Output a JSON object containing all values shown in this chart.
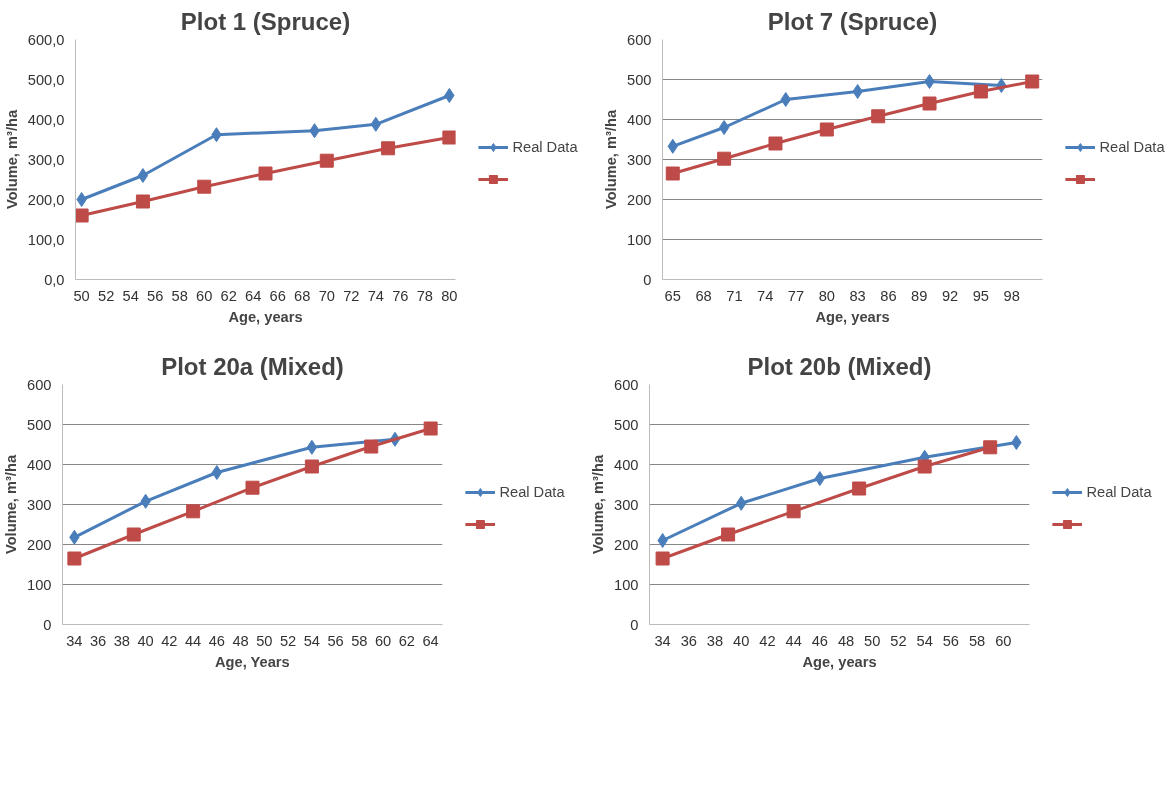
{
  "chart_data": [
    {
      "type": "line",
      "title": "Plot 1 (Spruce)",
      "xlabel": "Age, years",
      "ylabel": "Volume, m³/ha",
      "xlim": [
        49.5,
        80.5
      ],
      "xticks": [
        50,
        52,
        54,
        56,
        58,
        60,
        62,
        64,
        66,
        68,
        70,
        72,
        74,
        76,
        78,
        80
      ],
      "ylim": [
        0,
        600
      ],
      "yticks": [
        {
          "value": 0,
          "label": "0,0"
        },
        {
          "value": 100,
          "label": "100,0"
        },
        {
          "value": 200,
          "label": "200,0"
        },
        {
          "value": 300,
          "label": "300,0"
        },
        {
          "value": 400,
          "label": "400,0"
        },
        {
          "value": 500,
          "label": "500,0"
        },
        {
          "value": 600,
          "label": "600,0"
        }
      ],
      "grid": false,
      "legend": "right",
      "series": [
        {
          "name": "Real Data",
          "color": "#4a7ebb",
          "marker": "diamond",
          "x": [
            50,
            55,
            61,
            69,
            74,
            80
          ],
          "values": [
            200,
            260,
            362,
            372,
            388,
            460
          ]
        },
        {
          "color": "#be4b48",
          "marker": "square",
          "x": [
            50,
            55,
            60,
            65,
            70,
            75,
            80
          ],
          "values": [
            160,
            195,
            232,
            265,
            297,
            328,
            355
          ]
        }
      ]
    },
    {
      "type": "line",
      "title": "Plot 7 (Spruce)",
      "xlabel": "Age, years",
      "ylabel": "Volume, m³/ha",
      "xlim": [
        64,
        101
      ],
      "xticks": [
        65,
        68,
        71,
        74,
        77,
        80,
        83,
        86,
        89,
        92,
        95,
        98
      ],
      "ylim": [
        0,
        600
      ],
      "yticks": [
        0,
        100,
        200,
        300,
        400,
        500,
        600
      ],
      "grid": "y",
      "legend": "right",
      "series": [
        {
          "name": "Real Data",
          "color": "#4a7ebb",
          "marker": "diamond",
          "x": [
            65,
            70,
            76,
            83,
            90,
            97
          ],
          "values": [
            333,
            380,
            450,
            470,
            495,
            485
          ]
        },
        {
          "color": "#be4b48",
          "marker": "square",
          "x": [
            65,
            70,
            75,
            80,
            85,
            90,
            95,
            100
          ],
          "values": [
            265,
            302,
            340,
            375,
            408,
            440,
            470,
            495
          ]
        }
      ]
    },
    {
      "type": "line",
      "title": "Plot 20a (Mixed)",
      "xlabel": "Age, Years",
      "ylabel": "Volume, m³/ha",
      "xlim": [
        33,
        65
      ],
      "xticks": [
        34,
        36,
        38,
        40,
        42,
        44,
        46,
        48,
        50,
        52,
        54,
        56,
        58,
        60,
        62,
        64
      ],
      "ylim": [
        0,
        600
      ],
      "yticks": [
        0,
        100,
        200,
        300,
        400,
        500,
        600
      ],
      "grid": "y",
      "legend": "right",
      "series": [
        {
          "name": "Real Data",
          "color": "#4a7ebb",
          "marker": "diamond",
          "x": [
            34,
            40,
            46,
            54,
            61
          ],
          "values": [
            218,
            308,
            380,
            443,
            463
          ]
        },
        {
          "color": "#be4b48",
          "marker": "square",
          "x": [
            34,
            39,
            44,
            49,
            54,
            59,
            64
          ],
          "values": [
            165,
            225,
            283,
            342,
            395,
            445,
            490
          ]
        }
      ]
    },
    {
      "type": "line",
      "title": "Plot 20b (Mixed)",
      "xlabel": "Age, years",
      "ylabel": "Volume, m³/ha",
      "xlim": [
        33,
        62
      ],
      "xticks": [
        34,
        36,
        38,
        40,
        42,
        44,
        46,
        48,
        50,
        52,
        54,
        56,
        58,
        60
      ],
      "ylim": [
        0,
        600
      ],
      "yticks": [
        0,
        100,
        200,
        300,
        400,
        500,
        600
      ],
      "grid": "y",
      "legend": "right",
      "series": [
        {
          "name": "Real Data",
          "color": "#4a7ebb",
          "marker": "diamond",
          "x": [
            34,
            40,
            46,
            54,
            61
          ],
          "values": [
            210,
            303,
            365,
            418,
            455
          ]
        },
        {
          "color": "#be4b48",
          "marker": "square",
          "x": [
            34,
            39,
            44,
            49,
            54,
            59
          ],
          "values": [
            165,
            225,
            283,
            340,
            395,
            443
          ]
        }
      ]
    }
  ]
}
